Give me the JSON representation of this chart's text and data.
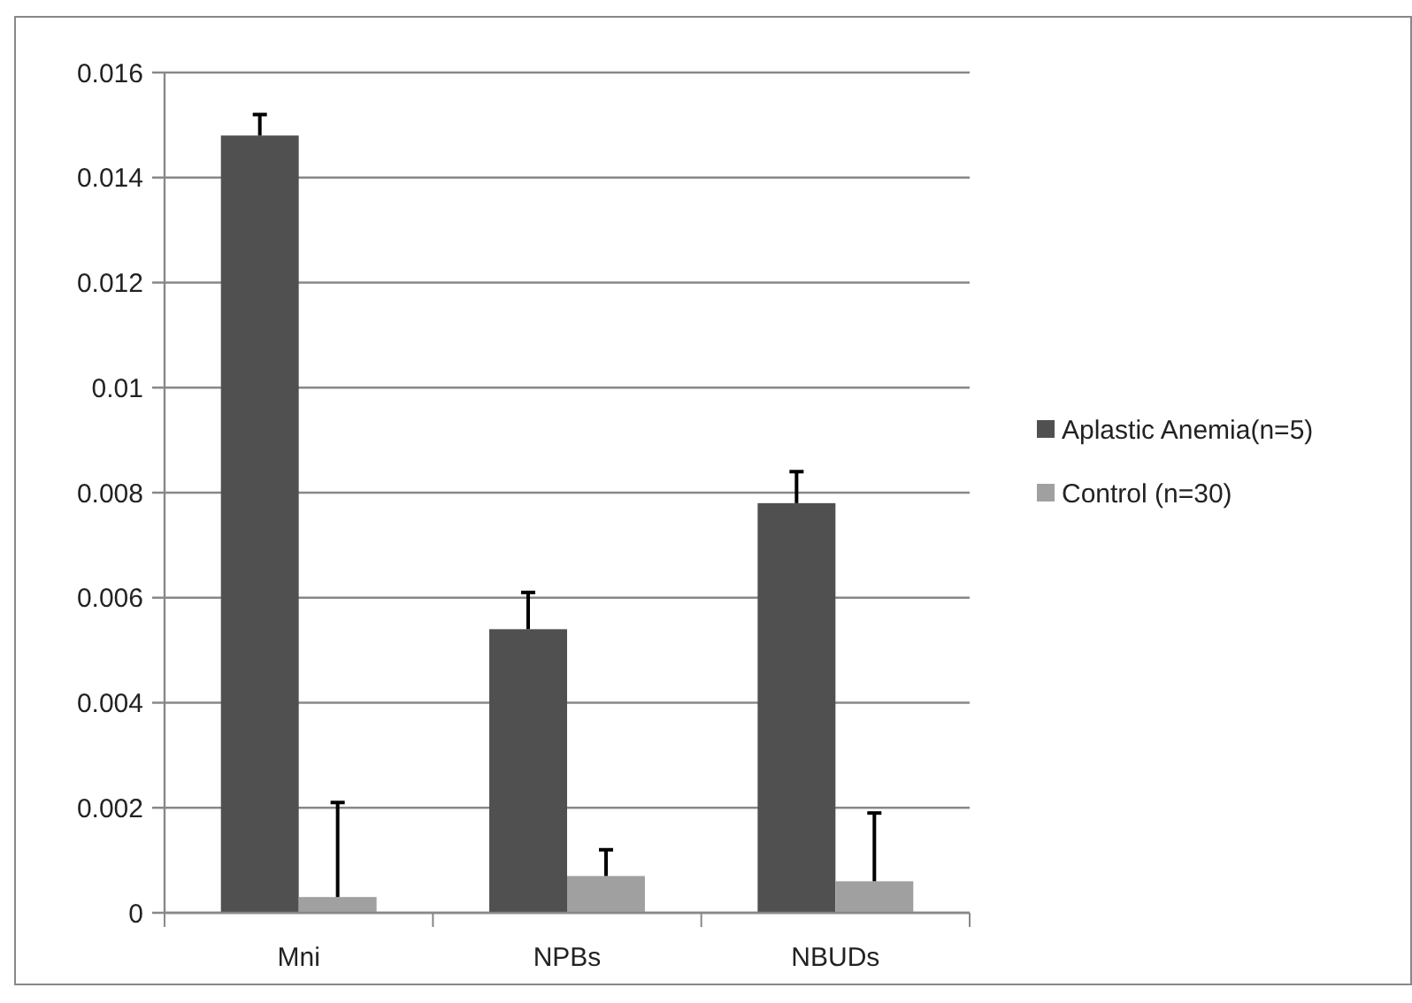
{
  "chart_data": {
    "type": "bar",
    "categories": [
      "Mni",
      "NPBs",
      "NBUDs"
    ],
    "series": [
      {
        "name": "Aplastic Anemia(n=5)",
        "color": "#505050",
        "values": [
          0.0148,
          0.0054,
          0.0078
        ],
        "errors": [
          [
            0.0148,
            0.0152
          ],
          [
            0.0054,
            0.0061
          ],
          [
            0.0078,
            0.0084
          ]
        ]
      },
      {
        "name": "Control (n=30)",
        "color": "#a0a0a0",
        "values": [
          0.0003,
          0.0007,
          0.0006
        ],
        "errors": [
          [
            0.0003,
            0.0021
          ],
          [
            0.0007,
            0.0012
          ],
          [
            0.0006,
            0.0019
          ]
        ]
      }
    ],
    "ylim": [
      0,
      0.016
    ],
    "yticks": [
      {
        "value": 0,
        "label": "0"
      },
      {
        "value": 0.002,
        "label": "0.002"
      },
      {
        "value": 0.004,
        "label": "0.004"
      },
      {
        "value": 0.006,
        "label": "0.006"
      },
      {
        "value": 0.008,
        "label": "0.008"
      },
      {
        "value": 0.01,
        "label": "0.01"
      },
      {
        "value": 0.012,
        "label": "0.012"
      },
      {
        "value": 0.014,
        "label": "0.014"
      },
      {
        "value": 0.016,
        "label": "0.016"
      }
    ],
    "grid": "y",
    "legend": "right"
  }
}
